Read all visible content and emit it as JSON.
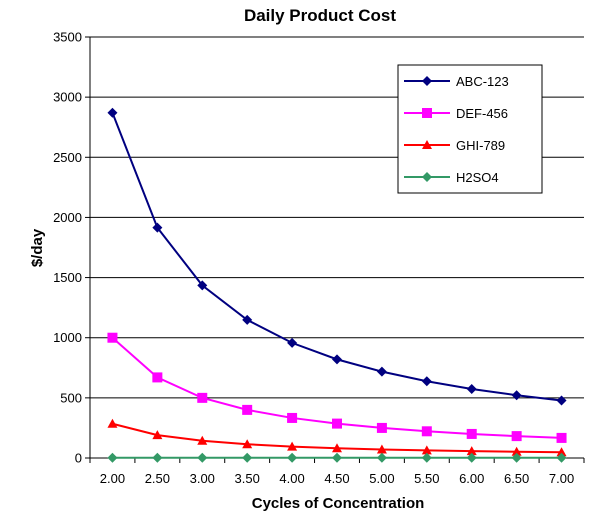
{
  "chart_data": {
    "type": "line",
    "title": "Daily Product Cost",
    "xlabel": "Cycles of Concentration",
    "ylabel": "$/day",
    "categories": [
      "2.00",
      "2.50",
      "3.00",
      "3.50",
      "4.00",
      "4.50",
      "5.00",
      "5.50",
      "6.00",
      "6.50",
      "7.00"
    ],
    "ylim": [
      0,
      3500
    ],
    "yticks": [
      0,
      500,
      1000,
      1500,
      2000,
      2500,
      3000,
      3500
    ],
    "grid": "horizontal",
    "legend_position": "top-right",
    "series": [
      {
        "name": "ABC-123",
        "color": "#000080",
        "marker": "diamond",
        "values": [
          2870,
          1915,
          1435,
          1148,
          957,
          820,
          718,
          638,
          574,
          522,
          478
        ]
      },
      {
        "name": "DEF-456",
        "color": "#FF00FF",
        "marker": "square",
        "values": [
          1000,
          670,
          500,
          400,
          333,
          286,
          250,
          222,
          200,
          182,
          167
        ]
      },
      {
        "name": "GHI-789",
        "color": "#FF0000",
        "marker": "triangle",
        "values": [
          285,
          190,
          143,
          114,
          95,
          81,
          71,
          63,
          57,
          52,
          48
        ]
      },
      {
        "name": "H2SO4",
        "color": "#339966",
        "marker": "diamond",
        "values": [
          2,
          2,
          2,
          2,
          2,
          2,
          2,
          2,
          2,
          2,
          2
        ]
      }
    ]
  }
}
